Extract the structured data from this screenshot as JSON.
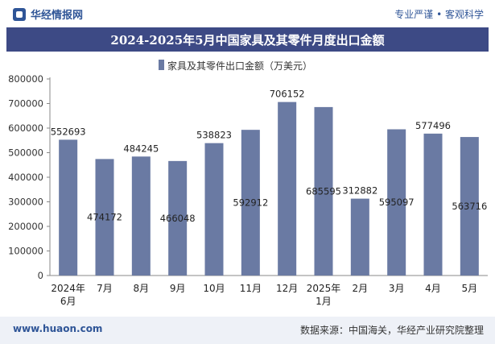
{
  "header": {
    "brand": "华经情报网",
    "tagline": "专业严谨 • 客观科学"
  },
  "footer": {
    "website": "www.huaon.com",
    "source": "数据来源：中国海关，华经产业研究院整理"
  },
  "colors": {
    "bar": "#6a7aa3",
    "title_bg": "#3d4a85",
    "brand": "#2f5597"
  },
  "chart_data": {
    "type": "bar",
    "title": "2024-2025年5月中国家具及其零件月度出口金额",
    "legend": "家具及其零件出口金额（万美元）",
    "legend_position": "top-center",
    "categories": [
      "2024年6月",
      "7月",
      "8月",
      "9月",
      "10月",
      "11月",
      "12月",
      "2025年1月",
      "2月",
      "3月",
      "4月",
      "5月"
    ],
    "values": [
      552693,
      474172,
      484245,
      466048,
      538823,
      592912,
      706152,
      685595,
      312882,
      595097,
      577496,
      563716
    ],
    "data_labels": [
      "552693",
      "474172",
      "484245",
      "466048",
      "538823",
      "592912",
      "706152",
      "685595",
      "312882",
      "595097",
      "577496",
      "563716"
    ],
    "label_inside": [
      false,
      true,
      false,
      true,
      false,
      true,
      false,
      true,
      false,
      true,
      false,
      true
    ],
    "ylim": [
      0,
      800000
    ],
    "yticks": [
      0,
      100000,
      200000,
      300000,
      400000,
      500000,
      600000,
      700000,
      800000
    ],
    "ytick_labels": [
      "0",
      "100000",
      "200000",
      "300000",
      "400000",
      "500000",
      "600000",
      "700000",
      "800000"
    ],
    "grid": false
  }
}
